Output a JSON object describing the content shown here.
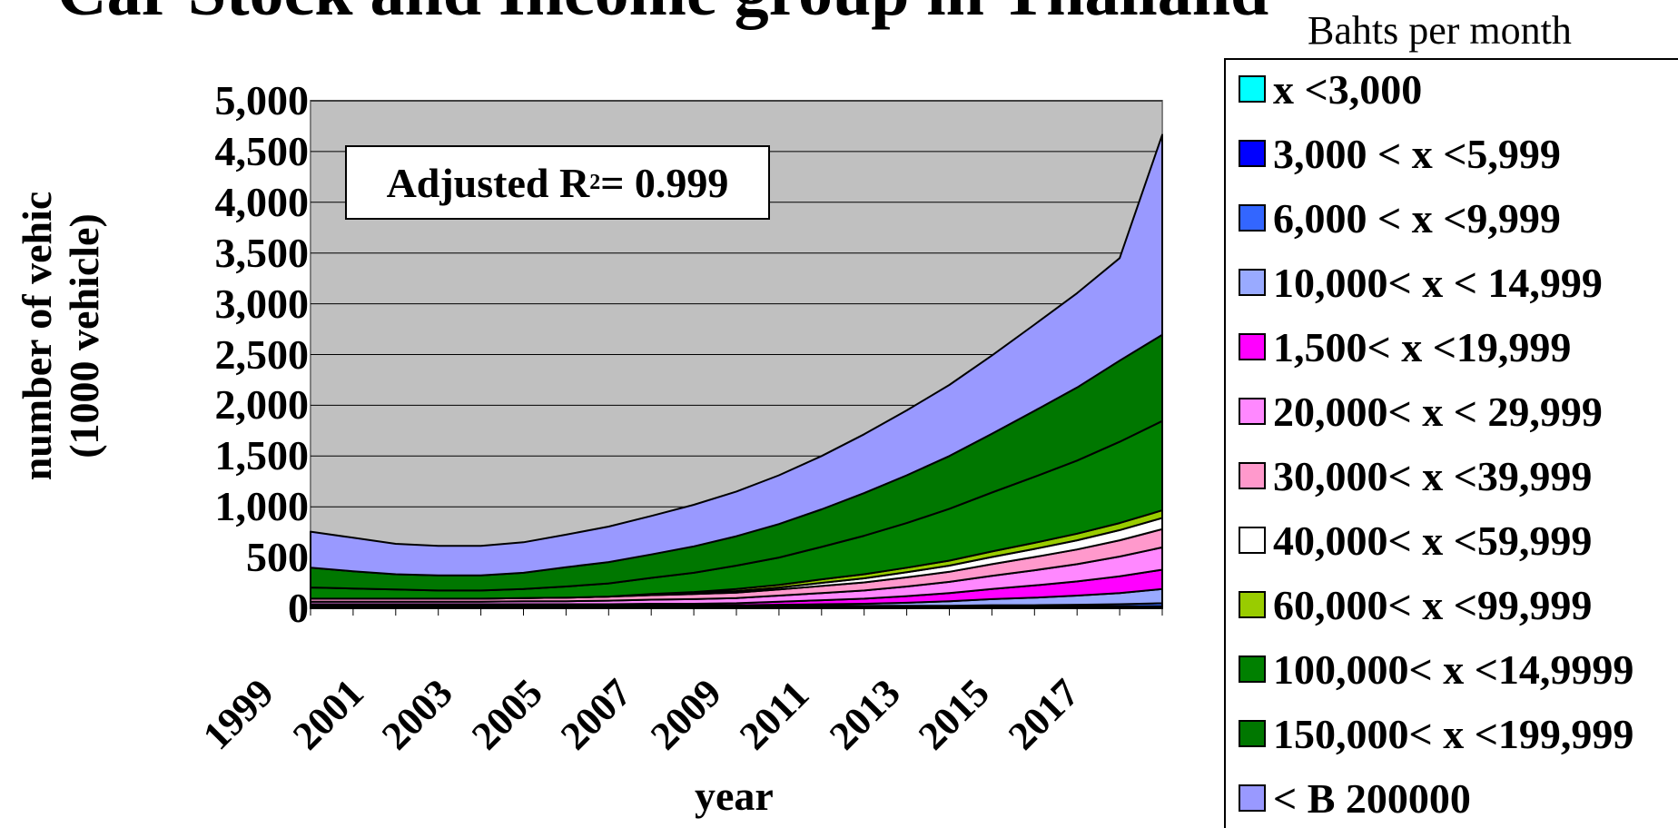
{
  "title": "Car Stock and Income group in Thailand",
  "units_label": "Bahts per month",
  "annotation": {
    "prefix": "Adjusted R",
    "sup": "2",
    "suffix": " = 0.999"
  },
  "colors": {
    "plot_background": "#C0C0C0",
    "grid": "#000000"
  },
  "chart_data": {
    "type": "area",
    "stacked": true,
    "title": "Car Stock and Income group in Thailand",
    "xlabel": "year",
    "ylabel_line1": "number of vehic",
    "ylabel_line2": "(1000 vehicle)",
    "ylim": [
      0,
      5000
    ],
    "yticks": [
      "0",
      "500",
      "1,000",
      "1,500",
      "2,000",
      "2,500",
      "3,000",
      "3,500",
      "4,000",
      "4,500",
      "5,000"
    ],
    "x_tick_labels": [
      "1999",
      "2001",
      "2003",
      "2005",
      "2007",
      "2009",
      "2011",
      "2013",
      "2015",
      "2017"
    ],
    "grid": "horizontal",
    "legend_title": "Bahts per month",
    "legend_position": "right",
    "x": [
      1999,
      2000,
      2001,
      2002,
      2003,
      2004,
      2005,
      2006,
      2007,
      2008,
      2009,
      2010,
      2011,
      2012,
      2013,
      2014,
      2015,
      2016,
      2017,
      2018,
      2019
    ],
    "series": [
      {
        "name": "x <3,000",
        "color": "#00FFFF",
        "values": [
          5,
          5,
          5,
          5,
          5,
          5,
          5,
          5,
          5,
          5,
          5,
          5,
          5,
          5,
          5,
          5,
          5,
          5,
          5,
          5,
          5
        ]
      },
      {
        "name": "3,000 < x <5,999",
        "color": "#0000FF",
        "values": [
          15,
          15,
          15,
          15,
          15,
          15,
          15,
          15,
          15,
          15,
          15,
          15,
          15,
          15,
          15,
          15,
          15,
          15,
          15,
          15,
          15
        ]
      },
      {
        "name": "6,000 < x <9,999",
        "color": "#3366FF",
        "values": [
          5,
          5,
          5,
          5,
          5,
          5,
          5,
          5,
          5,
          5,
          5,
          5,
          5,
          5,
          5,
          5,
          10,
          10,
          15,
          20,
          30
        ]
      },
      {
        "name": "10,000< x < 14,999",
        "color": "#99AAFF",
        "values": [
          5,
          5,
          5,
          5,
          5,
          5,
          5,
          5,
          5,
          5,
          5,
          10,
          15,
          20,
          30,
          45,
          60,
          75,
          90,
          110,
          140
        ]
      },
      {
        "name": "1,500< x <19,999",
        "color": "#FF00FF",
        "values": [
          10,
          10,
          10,
          10,
          10,
          10,
          10,
          10,
          15,
          15,
          20,
          30,
          40,
          50,
          65,
          80,
          100,
          120,
          140,
          165,
          190
        ]
      },
      {
        "name": "20,000< x < 29,999",
        "color": "#FF88FF",
        "values": [
          25,
          25,
          25,
          25,
          25,
          30,
          30,
          35,
          40,
          45,
          50,
          60,
          70,
          80,
          95,
          110,
          130,
          150,
          170,
          195,
          220
        ]
      },
      {
        "name": "30,000< x <39,999",
        "color": "#FF99CC",
        "values": [
          30,
          30,
          30,
          30,
          30,
          30,
          35,
          40,
          45,
          50,
          55,
          60,
          70,
          80,
          90,
          100,
          115,
          130,
          145,
          160,
          180
        ]
      },
      {
        "name": "40,000< x <59,999",
        "color": "#FFFFFF",
        "values": [
          0,
          0,
          0,
          0,
          0,
          0,
          0,
          0,
          5,
          10,
          15,
          20,
          30,
          40,
          50,
          60,
          70,
          80,
          90,
          100,
          110
        ]
      },
      {
        "name": "60,000< x <99,999",
        "color": "#99CC00",
        "values": [
          0,
          0,
          0,
          0,
          0,
          0,
          0,
          0,
          5,
          10,
          20,
          25,
          35,
          40,
          45,
          50,
          55,
          60,
          65,
          70,
          75
        ]
      },
      {
        "name": "100,000< x <14,9999",
        "color": "#008000",
        "values": [
          110,
          100,
          90,
          80,
          80,
          90,
          110,
          130,
          160,
          190,
          230,
          270,
          320,
          380,
          440,
          510,
          580,
          650,
          720,
          800,
          880
        ]
      },
      {
        "name": "150,000< x <199,999",
        "color": "#007700",
        "values": [
          195,
          170,
          150,
          150,
          150,
          160,
          190,
          210,
          230,
          260,
          290,
          330,
          370,
          420,
          470,
          520,
          580,
          650,
          720,
          800,
          850
        ]
      },
      {
        "name": "< B 200000",
        "color": "#9999FF",
        "values": [
          355,
          330,
          300,
          290,
          290,
          300,
          320,
          350,
          380,
          410,
          440,
          480,
          525,
          580,
          640,
          700,
          770,
          850,
          930,
          1010,
          1970
        ]
      }
    ]
  },
  "legend": [
    {
      "label": "x <3,000",
      "color": "#00FFFF"
    },
    {
      "label": "3,000 < x <5,999",
      "color": "#0000FF"
    },
    {
      "label": "6,000 < x <9,999",
      "color": "#3366FF"
    },
    {
      "label": "10,000< x < 14,999",
      "color": "#99AAFF"
    },
    {
      "label": "1,500< x <19,999",
      "color": "#FF00FF"
    },
    {
      "label": "20,000< x < 29,999",
      "color": "#FF88FF"
    },
    {
      "label": "30,000< x <39,999",
      "color": "#FF99CC"
    },
    {
      "label": "40,000< x <59,999",
      "color": "#FFFFFF"
    },
    {
      "label": "60,000< x <99,999",
      "color": "#99CC00"
    },
    {
      "label": "100,000< x <14,9999",
      "color": "#008000"
    },
    {
      "label": "150,000< x <199,999",
      "color": "#007700"
    },
    {
      "label": "< B 200000",
      "color": "#9999FF"
    }
  ]
}
